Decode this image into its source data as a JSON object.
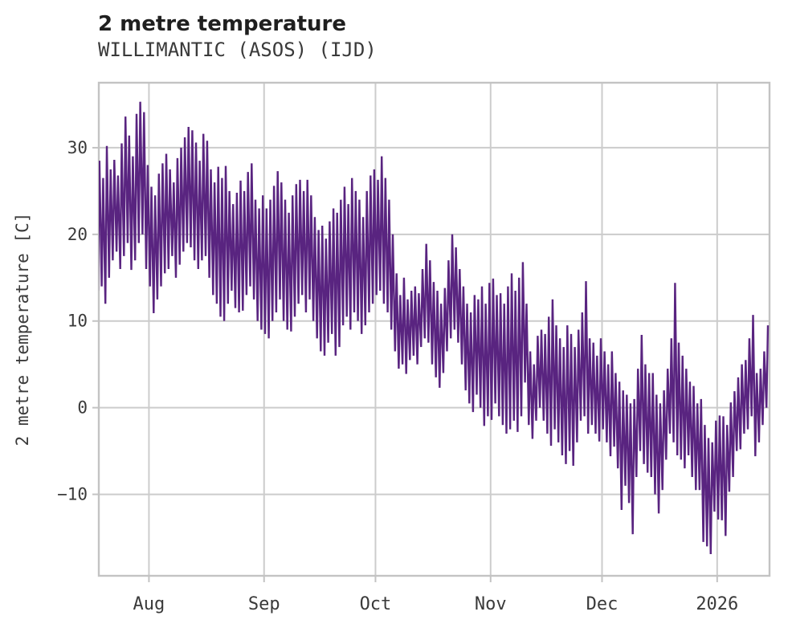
{
  "header": {
    "title": "2 metre temperature",
    "subtitle": "WILLIMANTIC (ASOS) (IJD)"
  },
  "chart_data": {
    "type": "line",
    "title": "2 metre temperature",
    "subtitle": "WILLIMANTIC (ASOS) (IJD)",
    "xlabel": "",
    "ylabel": "2 metre temperature [C]",
    "grid": true,
    "legend_position": "none",
    "line_color": "#592480",
    "grid_color": "#cccccc",
    "axis_color": "#c3c3c3",
    "tick_text_color": "#3a3a3a",
    "title_color": "#1f1f1f",
    "background": "#ffffff",
    "ylim": [
      -19.4,
      37.5
    ],
    "y_ticks": [
      {
        "value": 30,
        "label": "30"
      },
      {
        "value": 20,
        "label": "20"
      },
      {
        "value": 10,
        "label": "10"
      },
      {
        "value": 0,
        "label": "0"
      },
      {
        "value": -10,
        "label": "−10"
      }
    ],
    "x_axis": {
      "unit": "days relative to 2025-08-01",
      "xlim": [
        -13.5,
        167.1
      ],
      "ticks": [
        {
          "offset": 0,
          "label": "Aug"
        },
        {
          "offset": 31,
          "label": "Sep"
        },
        {
          "offset": 61,
          "label": "Oct"
        },
        {
          "offset": 92,
          "label": "Nov"
        },
        {
          "offset": 122,
          "label": "Dec"
        },
        {
          "offset": 153,
          "label": "2026"
        }
      ]
    },
    "series": [
      {
        "name": "2 metre temperature [C]",
        "start_date": "2025-07-18",
        "end_date": "2026-01-14",
        "representation": "daily min/max envelope of the hourly trace, degrees C",
        "daily_min": [
          13.5,
          14.0,
          12.0,
          15.0,
          17.0,
          18.0,
          16.0,
          17.5,
          19.0,
          15.9,
          17.0,
          19.0,
          20.0,
          16.0,
          14.0,
          10.9,
          12.5,
          14.0,
          15.5,
          16.0,
          17.5,
          15.0,
          16.5,
          18.0,
          19.0,
          18.5,
          17.0,
          16.0,
          17.0,
          17.5,
          15.0,
          13.0,
          12.0,
          10.5,
          10.0,
          12.0,
          13.5,
          11.5,
          11.0,
          11.2,
          13.0,
          14.0,
          12.5,
          10.0,
          9.0,
          8.5,
          8.0,
          10.0,
          11.0,
          12.5,
          10.0,
          9.0,
          8.8,
          10.5,
          12.0,
          13.0,
          11.0,
          12.5,
          10.0,
          8.0,
          6.5,
          6.0,
          7.5,
          8.5,
          6.0,
          7.0,
          9.5,
          10.5,
          9.0,
          11.0,
          10.0,
          8.5,
          9.5,
          11.0,
          12.0,
          13.0,
          13.5,
          12.0,
          11.0,
          9.0,
          6.5,
          4.5,
          5.0,
          3.9,
          5.5,
          6.0,
          5.0,
          7.0,
          8.0,
          7.5,
          5.0,
          3.5,
          2.3,
          4.0,
          6.5,
          8.0,
          9.0,
          7.5,
          5.0,
          2.0,
          0.5,
          -0.5,
          1.5,
          0.0,
          -2.1,
          -1.0,
          -1.4,
          0.5,
          -1.0,
          -2.0,
          -3.0,
          -2.5,
          -1.5,
          -2.8,
          -1.0,
          2.9,
          -2.0,
          -3.6,
          -1.5,
          0.0,
          -1.5,
          -3.0,
          -4.4,
          -2.5,
          -4.0,
          -5.5,
          -6.5,
          -5.0,
          -6.7,
          -4.0,
          -1.5,
          -1.0,
          -3.0,
          -2.0,
          -3.0,
          -3.9,
          -2.5,
          -4.0,
          -5.6,
          -4.5,
          -7.0,
          -11.8,
          -9.0,
          -11.0,
          -14.6,
          -8.0,
          -5.0,
          -6.5,
          -7.5,
          -8.0,
          -10.0,
          -12.2,
          -9.5,
          -6.0,
          -3.0,
          -4.0,
          -5.5,
          -6.0,
          -7.0,
          -5.5,
          -8.0,
          -9.5,
          -9.5,
          -15.5,
          -16.0,
          -16.9,
          -12.0,
          -12.9,
          -13.0,
          -14.8,
          -9.7,
          -8.0,
          -5.0,
          -4.8,
          -3.0,
          -2.5,
          -1.0,
          -5.6,
          -4.0,
          -2.0,
          0.0
        ],
        "daily_max": [
          28.5,
          26.5,
          30.2,
          27.5,
          28.6,
          26.8,
          30.5,
          33.6,
          31.4,
          29.0,
          33.9,
          35.3,
          34.1,
          28.0,
          25.5,
          24.5,
          27.0,
          28.2,
          29.3,
          27.5,
          26.0,
          28.8,
          30.0,
          31.2,
          32.4,
          32.0,
          30.6,
          28.5,
          31.6,
          30.8,
          27.5,
          26.0,
          27.8,
          26.5,
          27.9,
          25.0,
          23.5,
          24.8,
          26.2,
          25.0,
          27.2,
          28.2,
          24.0,
          23.0,
          24.5,
          23.0,
          24.0,
          25.6,
          27.3,
          26.0,
          24.0,
          22.5,
          24.5,
          25.8,
          26.3,
          25.0,
          26.3,
          24.5,
          22.0,
          20.5,
          21.0,
          19.5,
          21.5,
          23.0,
          22.5,
          24.0,
          25.5,
          23.5,
          26.5,
          25.0,
          24.0,
          22.0,
          25.0,
          26.8,
          27.5,
          26.3,
          29.0,
          26.5,
          24.0,
          20.0,
          15.5,
          13.0,
          15.0,
          12.5,
          13.5,
          14.0,
          13.2,
          16.0,
          18.9,
          17.0,
          14.5,
          13.5,
          12.0,
          13.8,
          17.0,
          20.0,
          18.5,
          16.0,
          14.0,
          12.0,
          11.0,
          13.0,
          12.5,
          14.0,
          12.0,
          14.4,
          14.9,
          13.0,
          13.2,
          12.0,
          14.0,
          15.5,
          13.5,
          15.0,
          16.8,
          12.0,
          6.5,
          5.0,
          8.3,
          9.0,
          8.5,
          10.5,
          12.5,
          9.5,
          8.0,
          7.0,
          9.5,
          8.5,
          7.0,
          9.0,
          11.0,
          14.6,
          8.0,
          7.5,
          6.0,
          8.0,
          6.5,
          5.0,
          6.5,
          4.0,
          3.0,
          2.0,
          1.5,
          0.5,
          1.0,
          4.5,
          8.4,
          5.0,
          4.0,
          4.0,
          1.5,
          0.5,
          2.0,
          4.5,
          8.0,
          14.4,
          7.5,
          6.0,
          4.5,
          3.0,
          2.5,
          0.5,
          1.0,
          -2.0,
          -3.5,
          -4.0,
          -1.5,
          -0.9,
          -1.0,
          -2.0,
          0.6,
          1.9,
          3.5,
          5.0,
          5.5,
          8.0,
          10.7,
          4.0,
          4.5,
          6.5,
          9.5
        ]
      }
    ]
  }
}
